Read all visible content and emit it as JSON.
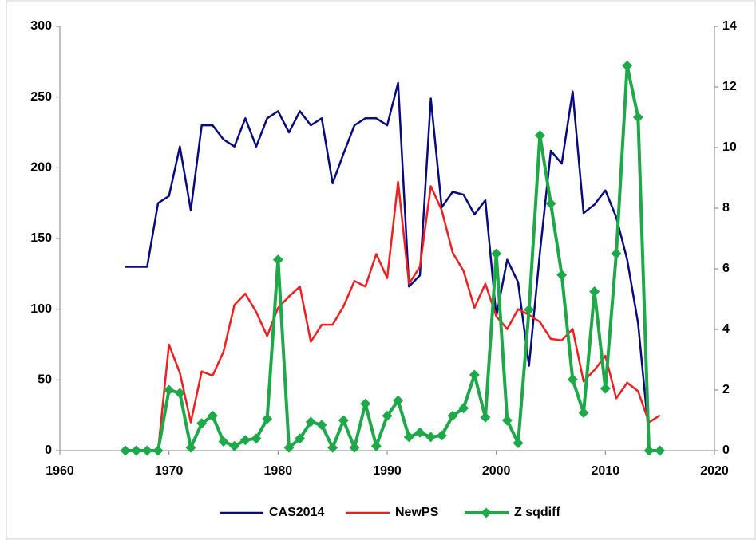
{
  "chart_data": {
    "type": "line",
    "x": [
      1966,
      1967,
      1968,
      1969,
      1970,
      1971,
      1972,
      1973,
      1974,
      1975,
      1976,
      1977,
      1978,
      1979,
      1980,
      1981,
      1982,
      1983,
      1984,
      1985,
      1986,
      1987,
      1988,
      1989,
      1990,
      1991,
      1992,
      1993,
      1994,
      1995,
      1996,
      1997,
      1998,
      1999,
      2000,
      2001,
      2002,
      2003,
      2004,
      2005,
      2006,
      2007,
      2008,
      2009,
      2010,
      2011,
      2012,
      2013,
      2014,
      2015
    ],
    "series": [
      {
        "name": "CAS2014",
        "color": "#0a0a80",
        "axis": "y",
        "marker": false,
        "values": [
          130,
          130,
          130,
          175,
          180,
          215,
          170,
          230,
          230,
          220,
          215,
          235,
          215,
          235,
          240,
          225,
          240,
          230,
          235,
          189,
          210,
          230,
          235,
          235,
          230,
          260,
          116,
          124,
          249,
          172,
          183,
          181,
          167,
          177,
          95,
          135,
          119,
          60,
          140,
          212,
          203,
          254,
          168,
          174,
          184,
          165,
          135,
          90,
          10,
          null
        ]
      },
      {
        "name": "NewPS",
        "color": "#f01e1e",
        "axis": "y",
        "marker": false,
        "values": [
          null,
          null,
          null,
          0,
          75,
          55,
          20,
          56,
          53,
          70,
          103,
          111,
          98,
          81,
          101,
          109,
          116,
          77,
          89,
          89,
          102,
          120,
          116,
          139,
          122,
          190,
          118,
          130,
          187,
          170,
          140,
          127,
          101,
          118,
          95,
          86,
          100,
          96,
          91,
          79,
          78,
          86,
          49,
          57,
          67,
          37,
          48,
          42,
          20,
          25
        ]
      },
      {
        "name": "Z sqdiff",
        "color": "#1fa84a",
        "axis": "y2",
        "marker": true,
        "values": [
          0,
          0,
          0,
          0,
          2.0,
          1.9,
          0.1,
          0.9,
          1.15,
          0.3,
          0.15,
          0.35,
          0.4,
          1.05,
          6.3,
          0.1,
          0.4,
          0.95,
          0.85,
          0.1,
          1.0,
          0.1,
          1.55,
          0.15,
          1.15,
          1.65,
          0.45,
          0.6,
          0.45,
          0.5,
          1.15,
          1.4,
          2.5,
          1.1,
          6.5,
          1.0,
          0.25,
          4.65,
          10.4,
          8.15,
          5.8,
          2.35,
          1.25,
          5.25,
          2.05,
          6.5,
          12.7,
          11.0,
          0,
          0
        ]
      }
    ],
    "xlim": [
      1960,
      2020
    ],
    "xticks": [
      1960,
      1970,
      1980,
      1990,
      2000,
      2010,
      2020
    ],
    "ylim": [
      0,
      300
    ],
    "yticks": [
      0,
      50,
      100,
      150,
      200,
      250,
      300
    ],
    "y2lim": [
      0,
      14
    ],
    "y2ticks": [
      0,
      2,
      4,
      6,
      8,
      10,
      12,
      14
    ],
    "grid": false,
    "legend": "bottom"
  }
}
